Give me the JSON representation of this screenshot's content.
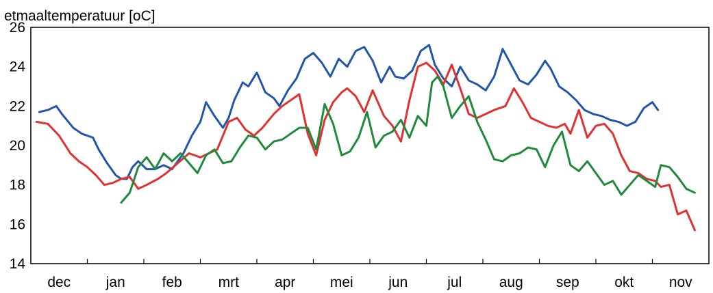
{
  "chart_data": {
    "type": "line",
    "title": "",
    "ylabel": "etmaaltemperatuur [oC]",
    "xlabel": "",
    "ylim": [
      14,
      26
    ],
    "yticks": [
      14,
      16,
      18,
      20,
      22,
      24,
      26
    ],
    "xlim": [
      0,
      12
    ],
    "categories": [
      "dec",
      "jan",
      "feb",
      "mrt",
      "apr",
      "mei",
      "jun",
      "jul",
      "aug",
      "sep",
      "okt",
      "nov"
    ],
    "grid": false,
    "legend": "none",
    "series": [
      {
        "color": "#2255aa",
        "x": [
          0.15,
          0.3,
          0.45,
          0.55,
          0.75,
          0.9,
          1.1,
          1.2,
          1.35,
          1.5,
          1.6,
          1.7,
          1.8,
          1.9,
          2.05,
          2.2,
          2.35,
          2.5,
          2.7,
          2.85,
          3.0,
          3.1,
          3.25,
          3.4,
          3.5,
          3.6,
          3.75,
          3.85,
          4.0,
          4.15,
          4.3,
          4.4,
          4.55,
          4.7,
          4.85,
          5.0,
          5.15,
          5.3,
          5.45,
          5.6,
          5.75,
          5.9,
          6.05,
          6.2,
          6.35,
          6.45,
          6.6,
          6.75,
          6.9,
          7.05,
          7.15,
          7.3,
          7.45,
          7.6,
          7.75,
          7.9,
          8.05,
          8.2,
          8.35,
          8.5,
          8.65,
          8.8,
          8.95,
          9.1,
          9.2,
          9.35,
          9.5,
          9.65,
          9.8,
          9.95,
          10.1,
          10.25,
          10.4,
          10.55,
          10.7,
          10.85,
          11.0,
          11.1
        ],
        "y": [
          21.7,
          21.8,
          22.0,
          21.6,
          20.9,
          20.6,
          20.4,
          19.8,
          19.1,
          18.5,
          18.3,
          18.3,
          18.9,
          19.2,
          18.8,
          18.8,
          19.0,
          18.8,
          19.6,
          20.5,
          21.2,
          22.2,
          21.5,
          20.9,
          21.4,
          22.3,
          23.2,
          23.0,
          23.7,
          22.7,
          22.4,
          22.0,
          22.8,
          23.4,
          24.4,
          24.7,
          24.2,
          23.5,
          24.4,
          24.0,
          24.8,
          25.0,
          24.3,
          23.2,
          24.0,
          23.5,
          23.4,
          23.8,
          24.8,
          25.1,
          24.1,
          23.4,
          23.0,
          24.0,
          23.3,
          23.1,
          22.8,
          23.5,
          24.9,
          24.1,
          23.3,
          23.1,
          23.6,
          24.3,
          23.9,
          23.0,
          22.7,
          22.3,
          21.8,
          21.6,
          21.5,
          21.3,
          21.2,
          21.0,
          21.2,
          21.9,
          22.2,
          21.8
        ]
      },
      {
        "color": "#e03030",
        "x": [
          0.1,
          0.3,
          0.5,
          0.7,
          0.85,
          1.0,
          1.15,
          1.3,
          1.45,
          1.6,
          1.75,
          1.9,
          2.05,
          2.25,
          2.4,
          2.6,
          2.8,
          3.0,
          3.15,
          3.3,
          3.5,
          3.65,
          3.8,
          3.95,
          4.1,
          4.3,
          4.45,
          4.6,
          4.75,
          4.9,
          5.05,
          5.2,
          5.35,
          5.5,
          5.6,
          5.75,
          5.9,
          6.05,
          6.25,
          6.4,
          6.55,
          6.7,
          6.85,
          7.0,
          7.15,
          7.3,
          7.45,
          7.6,
          7.75,
          7.9,
          8.05,
          8.2,
          8.4,
          8.55,
          8.7,
          8.85,
          9.0,
          9.15,
          9.3,
          9.45,
          9.55,
          9.7,
          9.85,
          10.0,
          10.15,
          10.3,
          10.45,
          10.6,
          10.75,
          10.9,
          11.05,
          11.15,
          11.3,
          11.45,
          11.6,
          11.75
        ],
        "y": [
          21.2,
          21.1,
          20.5,
          19.6,
          19.2,
          18.9,
          18.5,
          18.0,
          18.1,
          18.3,
          18.4,
          17.8,
          18.0,
          18.3,
          18.6,
          19.1,
          19.6,
          19.4,
          19.6,
          19.8,
          21.2,
          21.4,
          20.8,
          20.5,
          20.9,
          21.6,
          22.0,
          22.3,
          22.6,
          20.6,
          19.5,
          21.3,
          22.2,
          22.7,
          22.9,
          22.5,
          21.7,
          22.8,
          21.5,
          21.0,
          20.2,
          22.3,
          24.0,
          24.2,
          23.8,
          23.1,
          24.1,
          22.9,
          21.6,
          21.4,
          21.6,
          21.8,
          22.0,
          22.9,
          22.2,
          21.4,
          21.2,
          21.0,
          20.9,
          21.1,
          20.6,
          21.8,
          20.4,
          21.0,
          21.1,
          20.6,
          19.5,
          18.7,
          18.6,
          18.3,
          18.2,
          17.9,
          18.0,
          16.5,
          16.7,
          15.7
        ]
      },
      {
        "color": "#1f8a3c",
        "x": [
          1.6,
          1.75,
          1.9,
          2.05,
          2.2,
          2.35,
          2.5,
          2.65,
          2.8,
          2.95,
          3.1,
          3.25,
          3.4,
          3.55,
          3.7,
          3.85,
          4.0,
          4.15,
          4.3,
          4.45,
          4.6,
          4.75,
          4.9,
          5.05,
          5.2,
          5.35,
          5.5,
          5.65,
          5.8,
          5.95,
          6.1,
          6.25,
          6.4,
          6.55,
          6.7,
          6.85,
          7.0,
          7.1,
          7.2,
          7.3,
          7.45,
          7.6,
          7.75,
          7.9,
          8.05,
          8.2,
          8.35,
          8.5,
          8.65,
          8.8,
          8.95,
          9.1,
          9.25,
          9.4,
          9.55,
          9.7,
          9.85,
          10.0,
          10.15,
          10.3,
          10.45,
          10.6,
          10.75,
          10.9,
          11.05,
          11.15,
          11.3,
          11.45,
          11.6,
          11.75
        ],
        "y": [
          17.1,
          17.6,
          18.9,
          19.4,
          18.8,
          19.6,
          19.2,
          19.6,
          19.1,
          18.6,
          19.5,
          19.8,
          19.1,
          19.2,
          19.9,
          20.5,
          20.4,
          19.8,
          20.2,
          20.3,
          20.6,
          20.9,
          20.9,
          19.8,
          22.1,
          21.1,
          19.5,
          19.7,
          20.4,
          21.7,
          19.9,
          20.5,
          20.7,
          21.3,
          20.4,
          21.5,
          21.0,
          23.2,
          23.5,
          23.0,
          21.4,
          22.0,
          22.5,
          21.2,
          20.3,
          19.3,
          19.2,
          19.5,
          19.6,
          19.9,
          19.8,
          18.9,
          20.0,
          20.7,
          19.0,
          18.7,
          19.2,
          18.6,
          18.0,
          18.2,
          17.5,
          18.0,
          18.5,
          18.2,
          17.9,
          19.0,
          18.9,
          18.4,
          17.8,
          17.6
        ]
      }
    ]
  }
}
